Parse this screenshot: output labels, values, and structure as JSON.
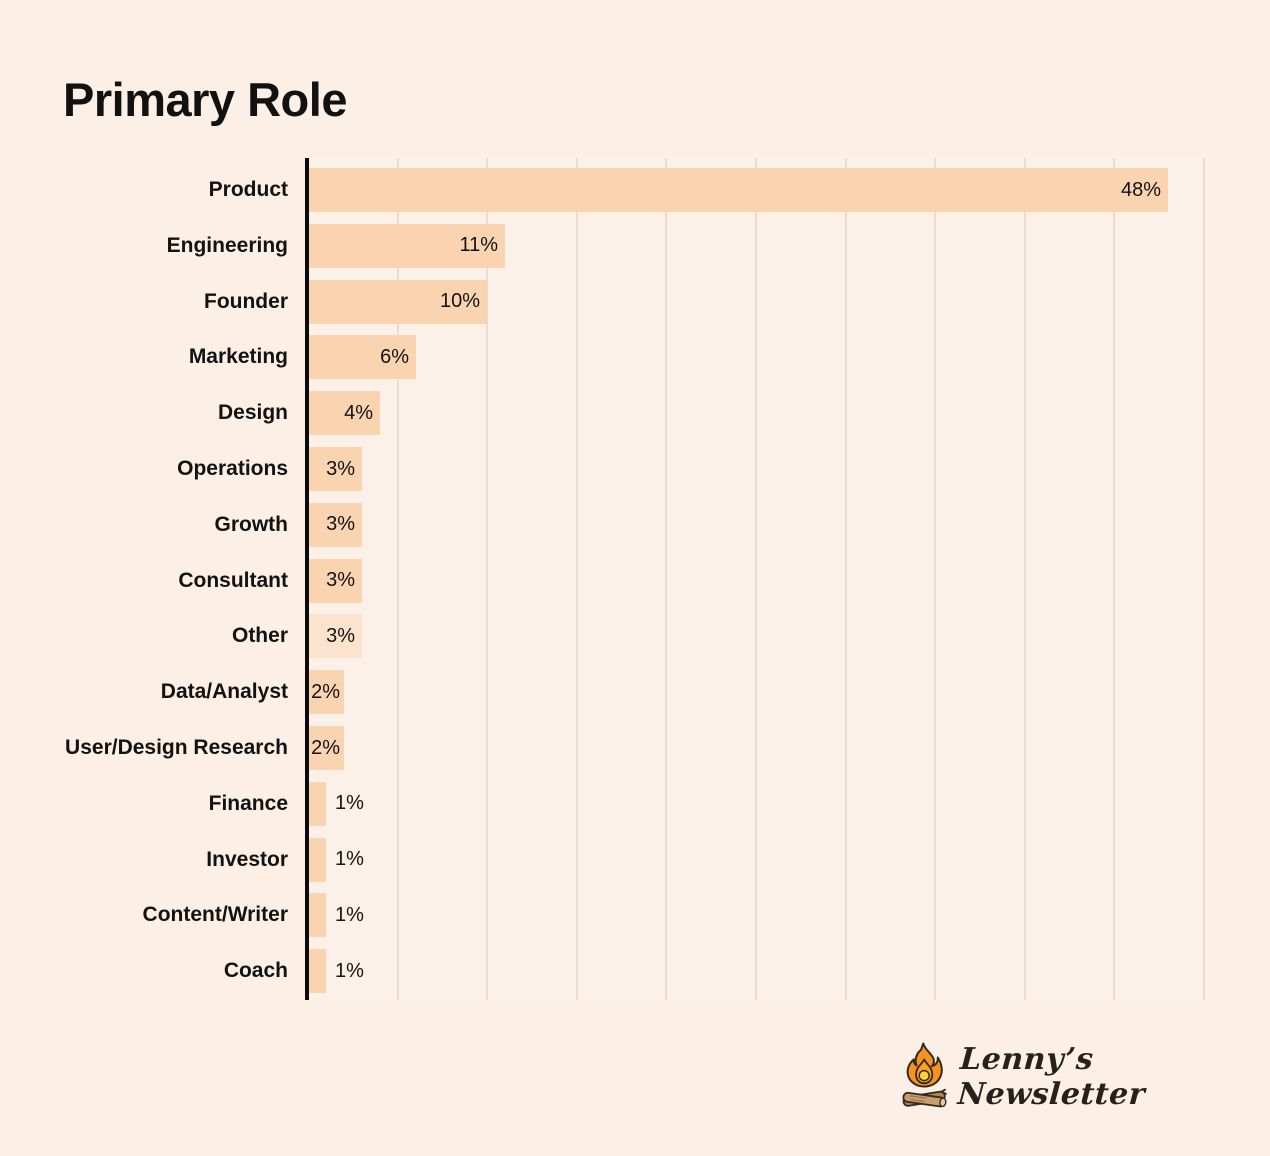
{
  "page": {
    "background_color": "#FCEFE6"
  },
  "title": "Primary Role",
  "chart_data": {
    "type": "bar",
    "orientation": "horizontal",
    "title": "Primary Role",
    "categories": [
      "Product",
      "Engineering",
      "Founder",
      "Marketing",
      "Design",
      "Operations",
      "Growth",
      "Consultant",
      "Other",
      "Data/Analyst",
      "User/Design Research",
      "Finance",
      "Investor",
      "Content/Writer",
      "Coach"
    ],
    "values": [
      48,
      11,
      10,
      6,
      4,
      3,
      3,
      3,
      3,
      2,
      2,
      1,
      1,
      1,
      1
    ],
    "value_labels": [
      "48%",
      "11%",
      "10%",
      "6%",
      "4%",
      "3%",
      "3%",
      "3%",
      "3%",
      "2%",
      "2%",
      "1%",
      "1%",
      "1%",
      "1%"
    ],
    "xlabel": "",
    "ylabel": "",
    "xlim": [
      0,
      50
    ],
    "gridline_interval": 5,
    "grid": true,
    "legend": false,
    "bar_color": "#FAD3B1",
    "other_bar_color": "#FBE3CD",
    "axis_color": "#0B0B0B",
    "gridline_color": "#E9DCD2",
    "label_color": "#121212"
  },
  "branding": {
    "logo_text": "Lenny’s Newsletter",
    "icon": "campfire-icon",
    "flame_outer_color": "#F6921E",
    "flame_inner_color": "#FAA21E",
    "flame_core_color": "#FFD23F",
    "log_color_light": "#C99D6F",
    "log_color_dark": "#B3855A",
    "outline_color": "#33291F"
  }
}
